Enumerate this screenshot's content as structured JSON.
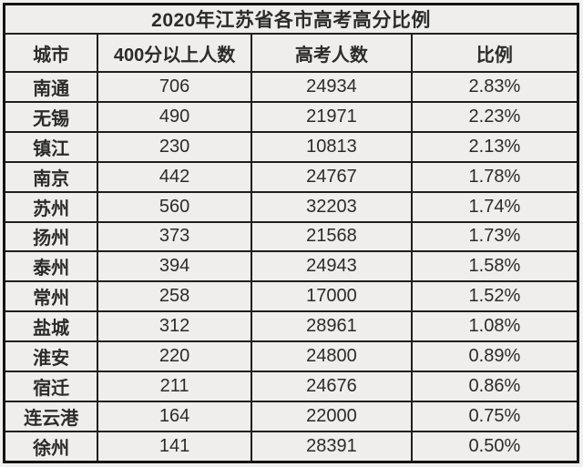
{
  "chart_data": {
    "type": "table",
    "title": "2020年江苏省各市高考高分比例",
    "columns": [
      "城市",
      "400分以上人数",
      "高考人数",
      "比例"
    ],
    "rows": [
      [
        "南通",
        "706",
        "24934",
        "2.83%"
      ],
      [
        "无锡",
        "490",
        "21971",
        "2.23%"
      ],
      [
        "镇江",
        "230",
        "10813",
        "2.13%"
      ],
      [
        "南京",
        "442",
        "24767",
        "1.78%"
      ],
      [
        "苏州",
        "560",
        "32203",
        "1.74%"
      ],
      [
        "扬州",
        "373",
        "21568",
        "1.73%"
      ],
      [
        "泰州",
        "394",
        "24943",
        "1.58%"
      ],
      [
        "常州",
        "258",
        "17000",
        "1.52%"
      ],
      [
        "盐城",
        "312",
        "28961",
        "1.08%"
      ],
      [
        "淮安",
        "220",
        "24800",
        "0.89%"
      ],
      [
        "宿迁",
        "211",
        "24676",
        "0.86%"
      ],
      [
        "连云港",
        "164",
        "22000",
        "0.75%"
      ],
      [
        "徐州",
        "141",
        "28391",
        "0.50%"
      ]
    ],
    "layout": {
      "grid": "on",
      "title_position": "top-merged-row",
      "cell_alignment": "center"
    },
    "colors": {
      "page_background": "#f1f0ee",
      "cell_background": "#efeeec",
      "border": "#1f1f1f",
      "text": "#2b2b2b"
    }
  }
}
